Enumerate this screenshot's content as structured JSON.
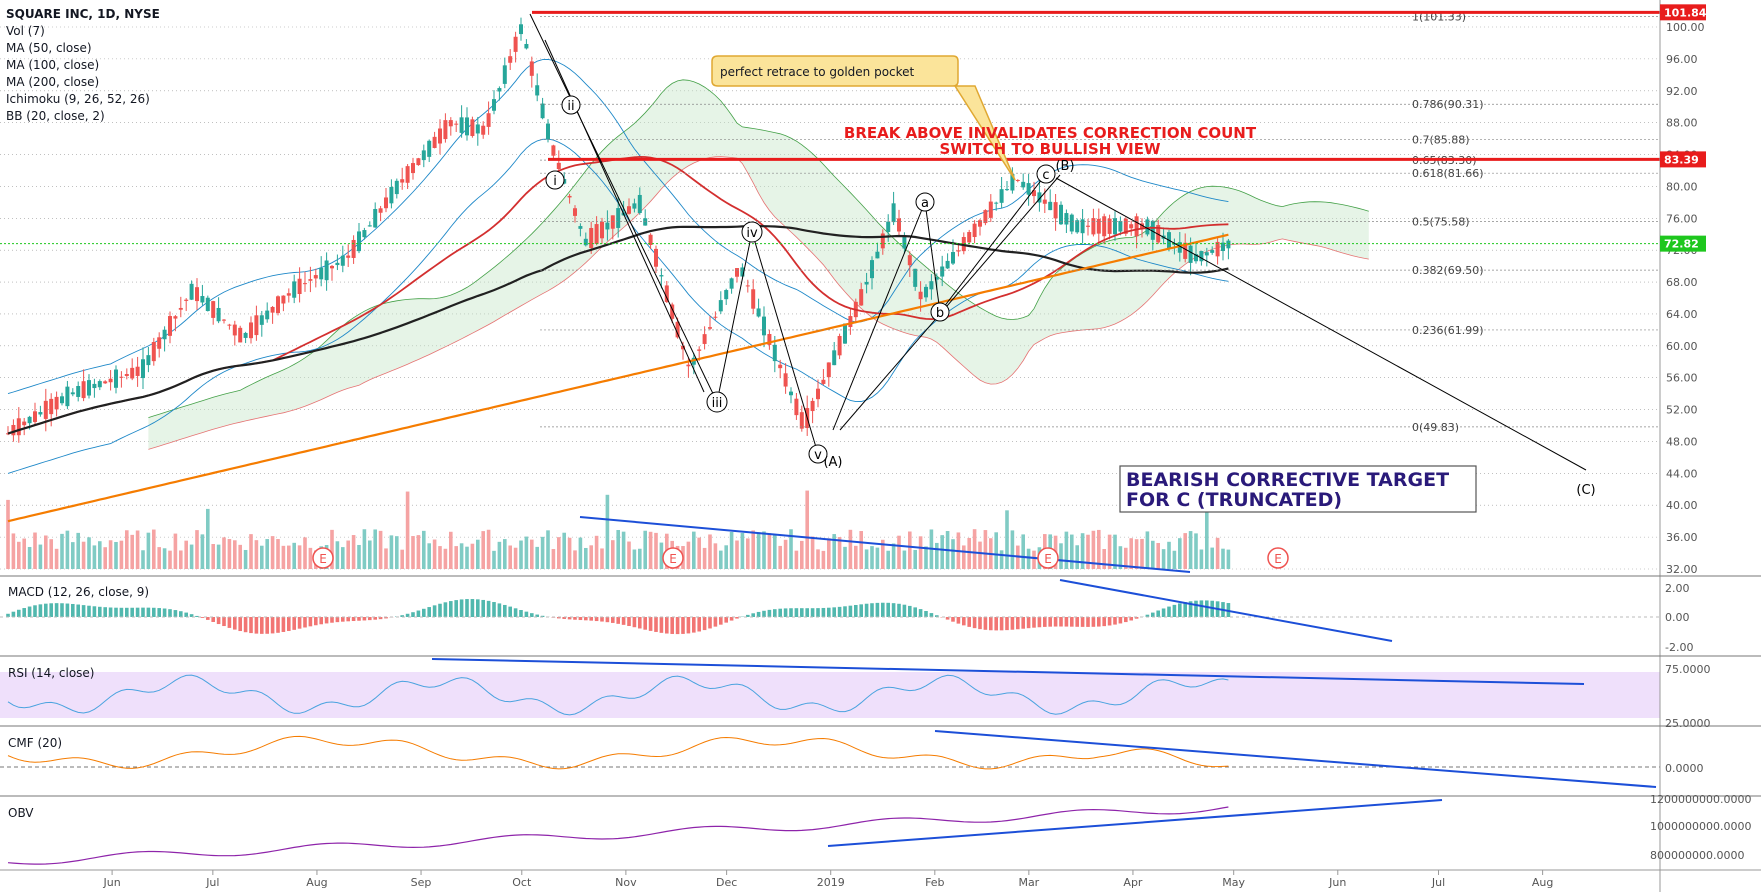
{
  "symbol_title": "SQUARE INC, 1D, NYSE",
  "legend": [
    "Vol (7)",
    "MA (50, close)",
    "MA (100, close)",
    "MA (200, close)",
    "Ichimoku (9, 26, 52, 26)",
    "BB (20, close, 2)"
  ],
  "price_axis_ticks": [
    "100.00",
    "96.00",
    "92.00",
    "88.00",
    "84.00",
    "80.00",
    "76.00",
    "72.00",
    "68.00",
    "64.00",
    "60.00",
    "56.00",
    "52.00",
    "48.00",
    "44.00",
    "40.00",
    "36.00",
    "32.00"
  ],
  "price_tags": [
    {
      "value": "101.84",
      "price": 101.84,
      "color": "#e81c1c"
    },
    {
      "value": "83.39",
      "price": 83.39,
      "color": "#e81c1c"
    },
    {
      "value": "72.82",
      "price": 72.82,
      "color": "#1ec71e"
    }
  ],
  "fib_levels": [
    {
      "label": "1(101.33)",
      "price": 101.33
    },
    {
      "label": "0.786(90.31)",
      "price": 90.31
    },
    {
      "label": "0.7(85.88)",
      "price": 85.88
    },
    {
      "label": "0.65(83.30)",
      "price": 83.3
    },
    {
      "label": "0.618(81.66)",
      "price": 81.66
    },
    {
      "label": "0.5(75.58)",
      "price": 75.58
    },
    {
      "label": "0.382(69.50)",
      "price": 69.5
    },
    {
      "label": "0.236(61.99)",
      "price": 61.99
    },
    {
      "label": "0(49.83)",
      "price": 49.83
    }
  ],
  "annotations": {
    "callout": "perfect retrace to golden pocket",
    "invalidation_line1": "BREAK ABOVE INVALIDATES CORRECTION COUNT",
    "invalidation_line2": "SWITCH TO BULLISH VIEW",
    "target_line1": "BEARISH CORRECTIVE TARGET",
    "target_line2": "FOR C (TRUNCATED)"
  },
  "wave_labels": [
    {
      "text": "i"
    },
    {
      "text": "ii"
    },
    {
      "text": "iii"
    },
    {
      "text": "iv"
    },
    {
      "text": "v"
    },
    {
      "text": "(A)"
    },
    {
      "text": "a"
    },
    {
      "text": "b"
    },
    {
      "text": "c"
    },
    {
      "text": "(B)"
    },
    {
      "text": "(C)"
    }
  ],
  "earnings_marker": "E",
  "x_axis_labels": [
    "Jun",
    "Jul",
    "Aug",
    "Sep",
    "Oct",
    "Nov",
    "Dec",
    "2019",
    "Feb",
    "Mar",
    "Apr",
    "May",
    "Jun",
    "Jul",
    "Aug"
  ],
  "panels": {
    "macd": {
      "title": "MACD (12, 26, close, 9)",
      "ticks": [
        "2.00",
        "0.00",
        "-2.00"
      ]
    },
    "rsi": {
      "title": "RSI (14, close)",
      "ticks": [
        "75.0000",
        "25.0000"
      ]
    },
    "cmf": {
      "title": "CMF (20)",
      "ticks": [
        "0.0000"
      ]
    },
    "obv": {
      "title": "OBV",
      "ticks": [
        "1200000000.0000",
        "1000000000.0000",
        "800000000.0000"
      ]
    }
  },
  "colors": {
    "up": "#26a69a",
    "down": "#ef5350",
    "ma50": "#d32f2f",
    "ma100": "#212121",
    "ma200": "#f57c00",
    "bb": "#1e88c8",
    "trend": "#1c4fd8",
    "rsi_band": "#efe0fb",
    "cmf": "#f57c00",
    "obv": "#8e24aa"
  },
  "chart_data": {
    "type": "candlestick",
    "title": "SQUARE INC, 1D, NYSE",
    "x_range": [
      "2018-05",
      "2019-08"
    ],
    "ylim": [
      32,
      102
    ],
    "key_prices": {
      "high": 101.84,
      "invalidation": 83.39,
      "last": 72.82,
      "wave_A_low": 49.83
    },
    "price_path": [
      {
        "date": "2018-05-01",
        "close": 49
      },
      {
        "date": "2018-05-20",
        "close": 54
      },
      {
        "date": "2018-06-10",
        "close": 57
      },
      {
        "date": "2018-06-25",
        "close": 67
      },
      {
        "date": "2018-07-10",
        "close": 61
      },
      {
        "date": "2018-07-25",
        "close": 67
      },
      {
        "date": "2018-08-10",
        "close": 71
      },
      {
        "date": "2018-08-25",
        "close": 80
      },
      {
        "date": "2018-09-10",
        "close": 88
      },
      {
        "date": "2018-09-20",
        "close": 87
      },
      {
        "date": "2018-10-01",
        "close": 100
      },
      {
        "date": "2018-10-05",
        "close": 93
      },
      {
        "date": "2018-10-10",
        "close": 85
      },
      {
        "date": "2018-10-20",
        "close": 73
      },
      {
        "date": "2018-11-05",
        "close": 78
      },
      {
        "date": "2018-11-20",
        "close": 57
      },
      {
        "date": "2018-12-05",
        "close": 70
      },
      {
        "date": "2018-12-24",
        "close": 50
      },
      {
        "date": "2019-01-10",
        "close": 66
      },
      {
        "date": "2019-01-20",
        "close": 77
      },
      {
        "date": "2019-01-28",
        "close": 66
      },
      {
        "date": "2019-02-25",
        "close": 81
      },
      {
        "date": "2019-03-15",
        "close": 75
      },
      {
        "date": "2019-04-05",
        "close": 75
      },
      {
        "date": "2019-04-20",
        "close": 71
      },
      {
        "date": "2019-04-30",
        "close": 72.82
      }
    ],
    "volume_panel": "Vol (7)",
    "indicators": [
      "MA 50",
      "MA 100",
      "MA 200",
      "Ichimoku",
      "BB 20",
      "MACD",
      "RSI 14",
      "CMF 20",
      "OBV"
    ]
  }
}
